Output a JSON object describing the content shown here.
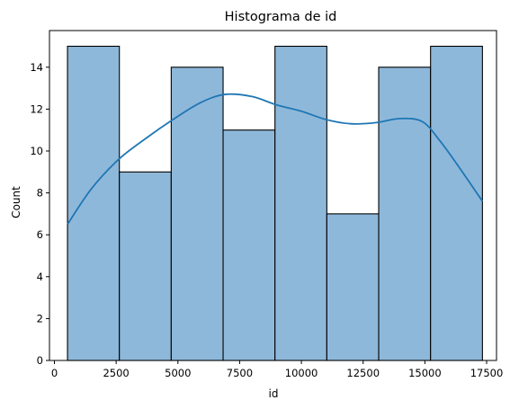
{
  "chart_data": {
    "type": "bar",
    "title": "Histograma de id",
    "xlabel": "id",
    "ylabel": "Count",
    "xlim": [
      -200,
      17900
    ],
    "ylim": [
      0,
      15.75
    ],
    "bin_edges": [
      530,
      2630,
      4730,
      6830,
      8930,
      11030,
      13130,
      15230,
      17330
    ],
    "values": [
      15,
      9,
      14,
      11,
      15,
      7,
      14,
      15
    ],
    "xticks": [
      0,
      2500,
      5000,
      7500,
      10000,
      12500,
      15000,
      17500
    ],
    "yticks": [
      0,
      2,
      4,
      6,
      8,
      10,
      12,
      14
    ],
    "kde": {
      "x": [
        530,
        1500,
        2600,
        3700,
        4800,
        5900,
        6900,
        8000,
        9000,
        10000,
        11000,
        12000,
        13000,
        14000,
        14900,
        15600,
        16400,
        17330
      ],
      "y": [
        6.5,
        8.2,
        9.6,
        10.6,
        11.5,
        12.3,
        12.7,
        12.6,
        12.2,
        11.9,
        11.5,
        11.3,
        11.35,
        11.55,
        11.4,
        10.5,
        9.2,
        7.6
      ]
    },
    "grid": false,
    "legend": "none",
    "colors": {
      "bar_fill": "#8eb8da",
      "bar_edge": "#000000",
      "kde_line": "#1f77b4"
    }
  }
}
